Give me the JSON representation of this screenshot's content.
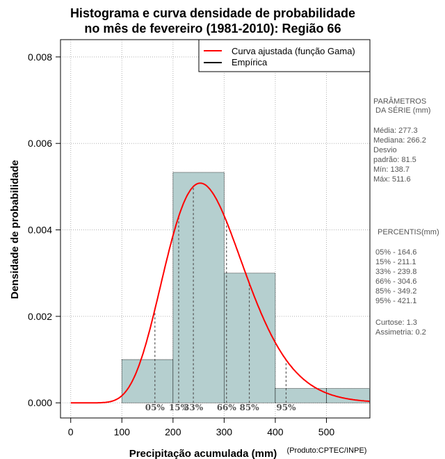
{
  "chart_data": {
    "type": "histogram",
    "title_lines": [
      "Histograma e curva densidade de probabilidade",
      "no mês de fevereiro (1981-2010): Região 66"
    ],
    "xlabel": "Precipitação acumulada (mm)",
    "ylabel": "Densidade de probabilidade",
    "credit": "(Produto:CPTEC/INPE)",
    "xlim": [
      -20,
      585
    ],
    "ylim": [
      -0.00035,
      0.0084
    ],
    "x_ticks": [
      0,
      100,
      200,
      300,
      400,
      500
    ],
    "y_ticks": [
      0.0,
      0.002,
      0.004,
      0.006,
      0.008
    ],
    "y_tick_labels": [
      "0.000",
      "0.002",
      "0.004",
      "0.006",
      "0.008"
    ],
    "grid": true,
    "bins": [
      {
        "start": 100,
        "end": 200,
        "density": 0.001
      },
      {
        "start": 200,
        "end": 300,
        "density": 0.00533
      },
      {
        "start": 300,
        "end": 400,
        "density": 0.003
      },
      {
        "start": 400,
        "end": 500,
        "density": 0.000333
      },
      {
        "start": 500,
        "end": 600,
        "density": 0.000333
      }
    ],
    "fitted_curve": {
      "distribution": "gamma",
      "shape": 11.57,
      "scale": 23.96,
      "color": "#ff0000"
    },
    "bar_color": "#b5cfcf",
    "legend": [
      {
        "label": "Curva ajustada (função Gama)",
        "color": "#ff0000"
      },
      {
        "label": "Empírica",
        "color": "#000000"
      }
    ],
    "percentiles": [
      {
        "label": "05%",
        "value": 164.6
      },
      {
        "label": "15%",
        "value": 211.1
      },
      {
        "label": "33%",
        "value": 239.8
      },
      {
        "label": "66%",
        "value": 304.6
      },
      {
        "label": "85%",
        "value": 349.2
      },
      {
        "label": "95%",
        "value": 421.1
      }
    ]
  },
  "side_panel": {
    "params_title_1": "PARÂMETROS",
    "params_title_2": "DA SÉRIE (mm)",
    "params_lines": [
      "Média:  277.3",
      "Mediana:  266.2",
      "Desvio",
      "padrão:  81.5",
      "Mín:  138.7",
      "Máx:  511.6"
    ],
    "percentis_title": "PERCENTIS(mm)",
    "percentis_lines": [
      "05% -  164.6",
      "15% -  211.1",
      "33% -  239.8",
      "66% -  304.6",
      "85% -  349.2",
      "95% -  421.1"
    ],
    "stats_lines": [
      "Curtose:  1.3",
      "Assimetria:  0.2"
    ]
  }
}
